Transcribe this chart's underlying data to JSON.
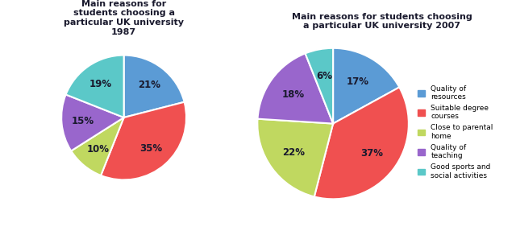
{
  "title1": "Main reasons for\nstudents choosing a\nparticular UK university\n1987",
  "title2": "Main reasons for students choosing\na particular UK university 2007",
  "categories": [
    "Quality of\nresources",
    "Suitable degree\ncourses",
    "Close to parental\nhome",
    "Quality of\nteaching",
    "Good sports and\nsocial activities"
  ],
  "values1": [
    21,
    35,
    10,
    15,
    19
  ],
  "values2": [
    17,
    37,
    22,
    18,
    6
  ],
  "colors": [
    "#5b9bd5",
    "#f05050",
    "#c0d860",
    "#9966cc",
    "#5bc8c8"
  ],
  "bg_color": "#ffffff",
  "panel_bg": "#f5f5f5",
  "border_color": "#aaaaaa",
  "label_color": "#1a1a2e",
  "text_color": "#222222"
}
